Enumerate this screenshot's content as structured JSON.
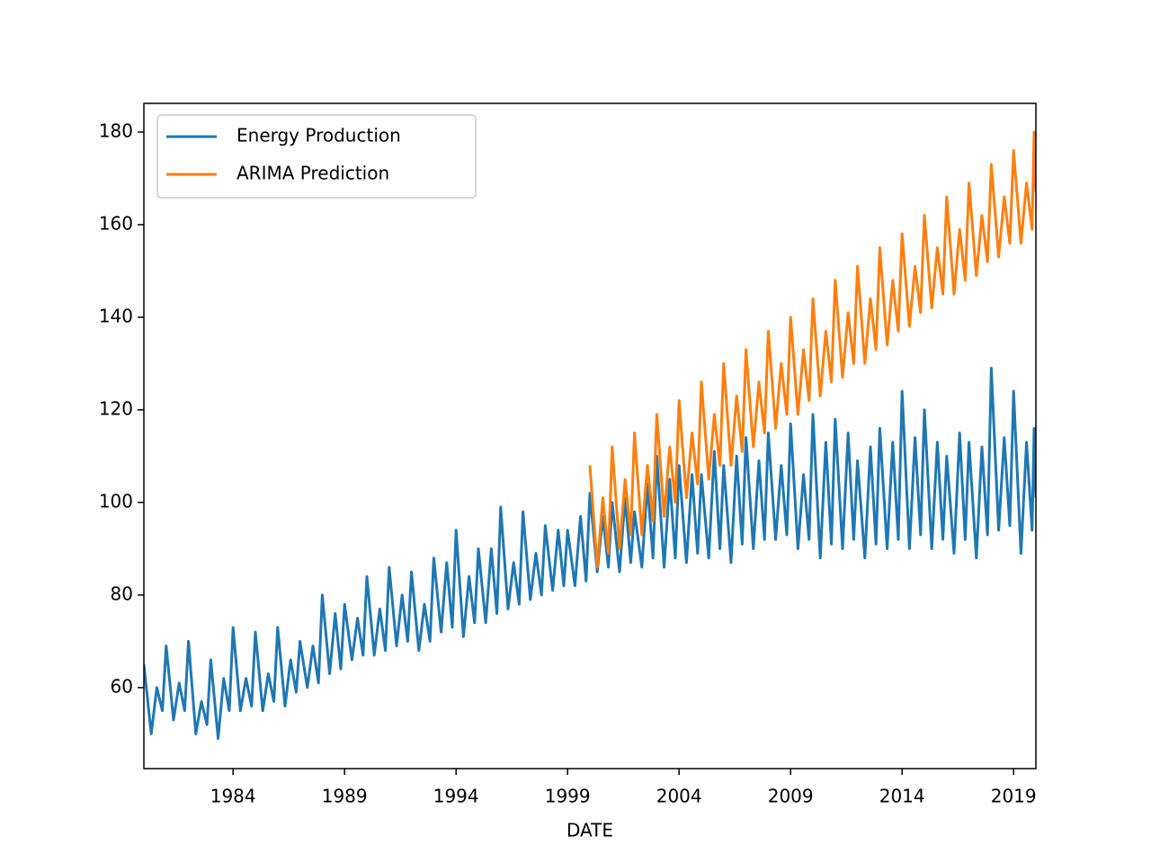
{
  "chart_data": {
    "type": "line",
    "x_label": "DATE",
    "xlim": [
      1980,
      2020
    ],
    "xticks": [
      1984,
      1989,
      1994,
      1999,
      2004,
      2009,
      2014,
      2019
    ],
    "ylim": [
      42.5,
      186.2
    ],
    "yticks": [
      60,
      80,
      100,
      120,
      140,
      160,
      180
    ],
    "legend": "upper left",
    "series": [
      {
        "name": "Energy Production",
        "color": "#1f77b4",
        "x": [
          1980,
          1980.33,
          1980.58,
          1980.83,
          1981,
          1981.33,
          1981.58,
          1981.83,
          1982,
          1982.33,
          1982.58,
          1982.83,
          1983,
          1983.33,
          1983.58,
          1983.83,
          1984,
          1984.33,
          1984.58,
          1984.83,
          1985,
          1985.33,
          1985.58,
          1985.83,
          1986,
          1986.33,
          1986.58,
          1986.83,
          1987,
          1987.33,
          1987.58,
          1987.83,
          1988,
          1988.33,
          1988.58,
          1988.83,
          1989,
          1989.33,
          1989.58,
          1989.83,
          1990,
          1990.33,
          1990.58,
          1990.83,
          1991,
          1991.33,
          1991.58,
          1991.83,
          1992,
          1992.33,
          1992.58,
          1992.83,
          1993,
          1993.33,
          1993.58,
          1993.83,
          1994,
          1994.33,
          1994.58,
          1994.83,
          1995,
          1995.33,
          1995.58,
          1995.83,
          1996,
          1996.33,
          1996.58,
          1996.83,
          1997,
          1997.33,
          1997.58,
          1997.83,
          1998,
          1998.33,
          1998.58,
          1998.83,
          1999,
          1999.33,
          1999.58,
          1999.83,
          2000,
          2000.33,
          2000.58,
          2000.83,
          2001,
          2001.33,
          2001.58,
          2001.83,
          2002,
          2002.33,
          2002.58,
          2002.83,
          2003,
          2003.33,
          2003.58,
          2003.83,
          2004,
          2004.33,
          2004.58,
          2004.83,
          2005,
          2005.33,
          2005.58,
          2005.83,
          2006,
          2006.33,
          2006.58,
          2006.83,
          2007,
          2007.33,
          2007.58,
          2007.83,
          2008,
          2008.33,
          2008.58,
          2008.83,
          2009,
          2009.33,
          2009.58,
          2009.83,
          2010,
          2010.33,
          2010.58,
          2010.83,
          2011,
          2011.33,
          2011.58,
          2011.83,
          2012,
          2012.33,
          2012.58,
          2012.83,
          2013,
          2013.33,
          2013.58,
          2013.83,
          2014,
          2014.33,
          2014.58,
          2014.83,
          2015,
          2015.33,
          2015.58,
          2015.83,
          2016,
          2016.33,
          2016.58,
          2016.83,
          2017,
          2017.33,
          2017.58,
          2017.83,
          2018,
          2018.33,
          2018.58,
          2018.83,
          2019,
          2019.33,
          2019.58,
          2019.83,
          2019.92,
          2020
        ],
        "values": [
          65,
          50,
          60,
          55,
          69,
          53,
          61,
          55,
          70,
          50,
          57,
          52,
          66,
          49,
          62,
          55,
          73,
          55,
          62,
          56,
          72,
          55,
          63,
          57,
          73,
          56,
          66,
          59,
          70,
          60,
          69,
          61,
          80,
          63,
          76,
          64,
          78,
          66,
          75,
          67,
          84,
          67,
          77,
          68,
          86,
          69,
          80,
          70,
          85,
          68,
          78,
          70,
          88,
          72,
          87,
          73,
          94,
          71,
          84,
          74,
          90,
          74,
          90,
          76,
          99,
          77,
          87,
          78,
          98,
          79,
          89,
          80,
          95,
          81,
          94,
          82,
          94,
          82,
          97,
          83,
          102,
          85,
          97,
          86,
          100,
          85,
          101,
          87,
          98,
          86,
          104,
          88,
          110,
          86,
          105,
          88,
          108,
          87,
          106,
          89,
          106,
          88,
          111,
          90,
          108,
          87,
          110,
          91,
          114,
          90,
          109,
          92,
          115,
          92,
          108,
          93,
          117,
          90,
          106,
          92,
          119,
          88,
          113,
          91,
          118,
          90,
          115,
          92,
          109,
          88,
          112,
          91,
          116,
          90,
          113,
          92,
          124,
          90,
          114,
          93,
          120,
          90,
          113,
          92,
          110,
          89,
          115,
          92,
          113,
          88,
          112,
          93,
          129,
          94,
          114,
          95,
          124,
          89,
          113,
          94,
          116,
          101
        ]
      },
      {
        "name": "ARIMA Prediction",
        "color": "#ff7f0e",
        "x": [
          2000,
          2000.33,
          2000.58,
          2000.83,
          2001,
          2001.33,
          2001.58,
          2001.83,
          2002,
          2002.33,
          2002.58,
          2002.83,
          2003,
          2003.33,
          2003.58,
          2003.83,
          2004,
          2004.33,
          2004.58,
          2004.83,
          2005,
          2005.33,
          2005.58,
          2005.83,
          2006,
          2006.33,
          2006.58,
          2006.83,
          2007,
          2007.33,
          2007.58,
          2007.83,
          2008,
          2008.33,
          2008.58,
          2008.83,
          2009,
          2009.33,
          2009.58,
          2009.83,
          2010,
          2010.33,
          2010.58,
          2010.83,
          2011,
          2011.33,
          2011.58,
          2011.83,
          2012,
          2012.33,
          2012.58,
          2012.83,
          2013,
          2013.33,
          2013.58,
          2013.83,
          2014,
          2014.33,
          2014.58,
          2014.83,
          2015,
          2015.33,
          2015.58,
          2015.83,
          2016,
          2016.33,
          2016.58,
          2016.83,
          2017,
          2017.33,
          2017.58,
          2017.83,
          2018,
          2018.33,
          2018.58,
          2018.83,
          2019,
          2019.33,
          2019.58,
          2019.83,
          2019.92,
          2020
        ],
        "values": [
          108,
          86,
          101,
          89,
          112,
          90,
          105,
          93,
          115,
          93,
          108,
          96,
          119,
          97,
          112,
          100,
          122,
          101,
          115,
          104,
          126,
          105,
          119,
          108,
          130,
          108,
          123,
          111,
          133,
          112,
          126,
          115,
          137,
          116,
          130,
          119,
          140,
          119,
          133,
          122,
          144,
          123,
          137,
          126,
          148,
          127,
          141,
          130,
          151,
          130,
          144,
          133,
          155,
          134,
          148,
          137,
          158,
          138,
          151,
          141,
          162,
          142,
          155,
          145,
          166,
          145,
          159,
          148,
          169,
          149,
          162,
          152,
          173,
          153,
          166,
          156,
          176,
          156,
          169,
          159,
          180,
          167
        ]
      }
    ]
  }
}
